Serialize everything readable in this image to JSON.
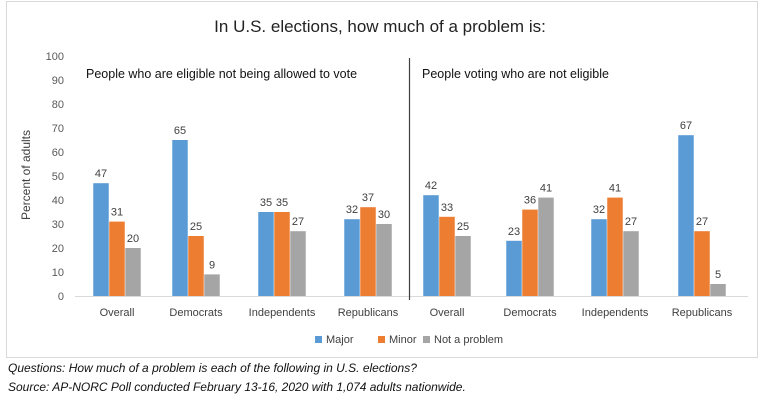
{
  "chart_data": {
    "type": "bar",
    "title": "In U.S. elections, how much of a problem is:",
    "ylabel": "Percent of adults",
    "xlabel": "",
    "ylim": [
      0,
      100
    ],
    "yticks": [
      0,
      10,
      20,
      30,
      40,
      50,
      60,
      70,
      80,
      90,
      100
    ],
    "grid": false,
    "legend_position": "bottom",
    "series_names": [
      "Major",
      "Minor",
      "Not a problem"
    ],
    "colors": {
      "Major": "#5b9bd5",
      "Minor": "#ed7d31",
      "Not a problem": "#a5a5a5"
    },
    "panels": [
      {
        "title": "People who are eligible not being allowed to vote",
        "categories": [
          "Overall",
          "Democrats",
          "Independents",
          "Republicans"
        ],
        "series": [
          {
            "name": "Major",
            "values": [
              47,
              65,
              35,
              32
            ]
          },
          {
            "name": "Minor",
            "values": [
              31,
              25,
              35,
              37
            ]
          },
          {
            "name": "Not a problem",
            "values": [
              20,
              9,
              27,
              30
            ]
          }
        ]
      },
      {
        "title": "People voting who are not eligible",
        "categories": [
          "Overall",
          "Democrats",
          "Independents",
          "Republicans"
        ],
        "series": [
          {
            "name": "Major",
            "values": [
              42,
              23,
              32,
              67
            ]
          },
          {
            "name": "Minor",
            "values": [
              33,
              36,
              41,
              27
            ]
          },
          {
            "name": "Not a problem",
            "values": [
              25,
              41,
              27,
              5
            ]
          }
        ]
      }
    ]
  },
  "notes": {
    "questions": "Questions: How much of a problem is each of the following in U.S. elections?",
    "source": "Source: AP-NORC Poll conducted February 13-16, 2020 with 1,074 adults nationwide."
  }
}
